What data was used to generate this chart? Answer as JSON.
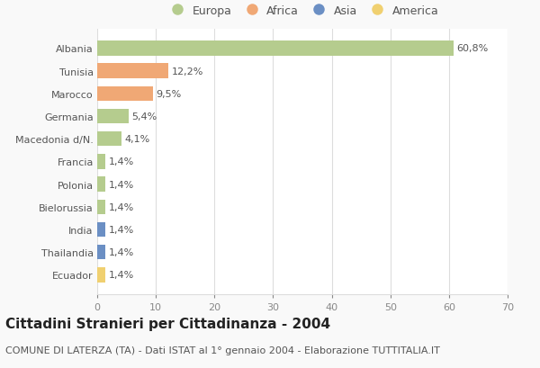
{
  "countries": [
    "Albania",
    "Tunisia",
    "Marocco",
    "Germania",
    "Macedonia d/N.",
    "Francia",
    "Polonia",
    "Bielorussia",
    "India",
    "Thailandia",
    "Ecuador"
  ],
  "values": [
    60.8,
    12.2,
    9.5,
    5.4,
    4.1,
    1.4,
    1.4,
    1.4,
    1.4,
    1.4,
    1.4
  ],
  "labels": [
    "60,8%",
    "12,2%",
    "9,5%",
    "5,4%",
    "4,1%",
    "1,4%",
    "1,4%",
    "1,4%",
    "1,4%",
    "1,4%",
    "1,4%"
  ],
  "colors": [
    "#b5cc8e",
    "#f0a875",
    "#f0a875",
    "#b5cc8e",
    "#b5cc8e",
    "#b5cc8e",
    "#b5cc8e",
    "#b5cc8e",
    "#6b8fc4",
    "#6b8fc4",
    "#f0d070"
  ],
  "legend_labels": [
    "Europa",
    "Africa",
    "Asia",
    "America"
  ],
  "legend_colors": [
    "#b5cc8e",
    "#f0a875",
    "#6b8fc4",
    "#f0d070"
  ],
  "title": "Cittadini Stranieri per Cittadinanza - 2004",
  "subtitle": "COMUNE DI LATERZA (TA) - Dati ISTAT al 1° gennaio 2004 - Elaborazione TUTTITALIA.IT",
  "xlim": [
    0,
    70
  ],
  "xticks": [
    0,
    10,
    20,
    30,
    40,
    50,
    60,
    70
  ],
  "bg_color": "#f9f9f9",
  "plot_bg_color": "#ffffff",
  "grid_color": "#dddddd",
  "title_fontsize": 11,
  "subtitle_fontsize": 8,
  "label_fontsize": 8,
  "tick_fontsize": 8,
  "legend_fontsize": 9,
  "bar_height": 0.65
}
